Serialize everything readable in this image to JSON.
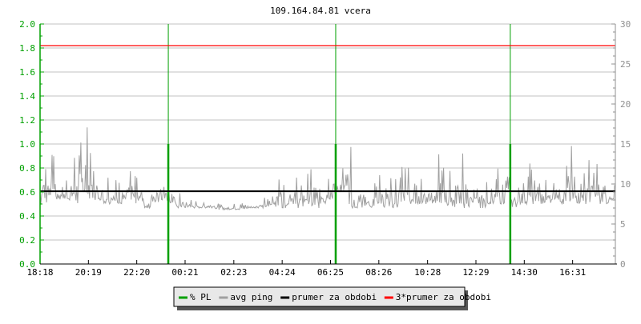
{
  "chart_data": {
    "type": "line",
    "title": "109.164.84.81 vcera",
    "x_ticks": [
      "18:18",
      "20:19",
      "22:20",
      "00:21",
      "02:23",
      "04:24",
      "06:25",
      "08:26",
      "10:28",
      "12:29",
      "14:30",
      "16:31"
    ],
    "x_range_minutes": [
      0,
      1440
    ],
    "left_axis": {
      "range": [
        0,
        2.0
      ],
      "ticks": [
        "0.0",
        "0.2",
        "0.4",
        "0.6",
        "0.8",
        "1.0",
        "1.2",
        "1.4",
        "1.6",
        "1.8",
        "2.0"
      ],
      "color": "#00a000"
    },
    "right_axis": {
      "range": [
        0,
        30
      ],
      "ticks": [
        "0",
        "5",
        "10",
        "15",
        "20",
        "25",
        "30"
      ],
      "color": "#909090"
    },
    "grid": true,
    "legend_placement": "bottom",
    "series": [
      {
        "name": "% PL",
        "color": "#00a000",
        "axis": "left",
        "events": [
          {
            "time": "23:39",
            "value": 1.0
          },
          {
            "time": "06:38",
            "value": 1.0
          },
          {
            "time": "13:55",
            "value": 1.0
          }
        ]
      },
      {
        "name": "avg ping",
        "color": "#a0a0a0",
        "axis": "right",
        "bin_minutes": 20,
        "min_max": [
          [
            7.5,
            15
          ],
          [
            8.5,
            14
          ],
          [
            8,
            13
          ],
          [
            8,
            12.5
          ],
          [
            7.5,
            16
          ],
          [
            8,
            18
          ],
          [
            8,
            14
          ],
          [
            8,
            12
          ],
          [
            7.5,
            13
          ],
          [
            7.5,
            11
          ],
          [
            7.5,
            12
          ],
          [
            7,
            13
          ],
          [
            7.5,
            11
          ],
          [
            7,
            10
          ],
          [
            7.5,
            12
          ],
          [
            8,
            14
          ],
          [
            7.5,
            10
          ],
          [
            7,
            9
          ],
          [
            7,
            8.5
          ],
          [
            7,
            8
          ],
          [
            7,
            8
          ],
          [
            7,
            8
          ],
          [
            6.8,
            7.8
          ],
          [
            6.8,
            7.8
          ],
          [
            6.8,
            7.6
          ],
          [
            6.8,
            7.8
          ],
          [
            7,
            7.8
          ],
          [
            7,
            8.2
          ],
          [
            7,
            8.5
          ],
          [
            7,
            11
          ],
          [
            7,
            12.5
          ],
          [
            7.5,
            11
          ],
          [
            7,
            12
          ],
          [
            7.5,
            12
          ],
          [
            7,
            11
          ],
          [
            7.5,
            13
          ],
          [
            8,
            14
          ],
          [
            9,
            13
          ],
          [
            7.5,
            15
          ],
          [
            7,
            9.5
          ],
          [
            7,
            11
          ],
          [
            7,
            10.5
          ],
          [
            7.5,
            13
          ],
          [
            7,
            11
          ],
          [
            7,
            12
          ],
          [
            7.5,
            14
          ],
          [
            7,
            13
          ],
          [
            7.5,
            11
          ],
          [
            7.5,
            12.5
          ],
          [
            7.5,
            14
          ],
          [
            7.5,
            13
          ],
          [
            7,
            12
          ],
          [
            7.5,
            14.5
          ],
          [
            7,
            11
          ],
          [
            7.5,
            10
          ],
          [
            7,
            11
          ],
          [
            7.5,
            10
          ],
          [
            7.5,
            12
          ],
          [
            7.5,
            14
          ],
          [
            7,
            11
          ],
          [
            7.5,
            11.5
          ],
          [
            7.5,
            13
          ],
          [
            7.5,
            12
          ],
          [
            7.5,
            11
          ],
          [
            8,
            12.5
          ],
          [
            7.5,
            13
          ],
          [
            7.5,
            15
          ],
          [
            7.5,
            12
          ],
          [
            7.5,
            14
          ],
          [
            7.5,
            14
          ],
          [
            7.5,
            12
          ],
          [
            7.5,
            10
          ]
        ]
      },
      {
        "name": "prumer za obdobi",
        "color": "#000000",
        "axis": "right",
        "value": 9.1
      },
      {
        "name": "3*prumer za obdobi",
        "color": "#ff0000",
        "axis": "right",
        "value": 27.3
      }
    ]
  }
}
